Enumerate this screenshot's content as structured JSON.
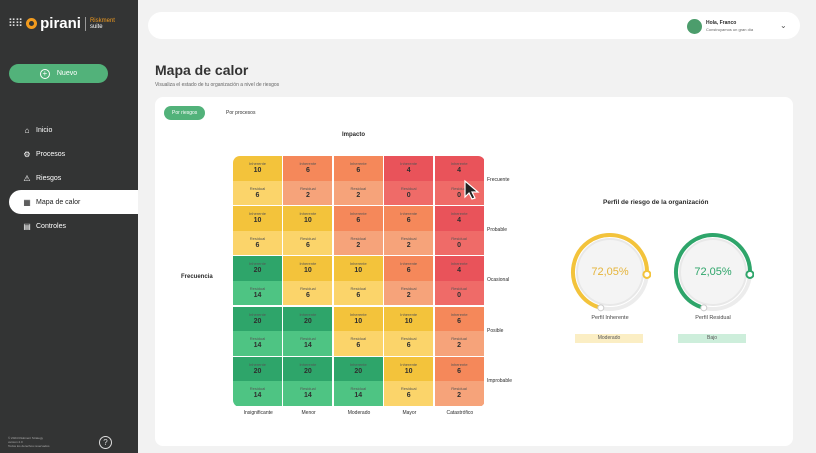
{
  "brand": {
    "name": "pirani",
    "suite_line1": "Riskment",
    "suite_line2": "suite",
    "grid_icon": "apps-grid-icon"
  },
  "new_button": {
    "label": "Nuevo"
  },
  "nav": [
    {
      "label": "Inicio",
      "icon": "home-icon",
      "glyph": "⌂"
    },
    {
      "label": "Procesos",
      "icon": "process-icon",
      "glyph": "⚙"
    },
    {
      "label": "Riesgos",
      "icon": "warning-icon",
      "glyph": "⚠"
    },
    {
      "label": "Mapa de calor",
      "icon": "heatmap-icon",
      "glyph": "▦"
    },
    {
      "label": "Controles",
      "icon": "controls-icon",
      "glyph": "▤"
    }
  ],
  "footer": {
    "line1": "© 2024 Riskment Strategy",
    "line2": "version 2.0",
    "line3": "Todos los derechos reservados"
  },
  "user": {
    "greeting": "Hola, Franco",
    "subtitle": "Construyamos un gran día"
  },
  "page": {
    "title": "Mapa de calor",
    "subtitle": "Visualiza el estado de tu organización a nivel de riesgos"
  },
  "tabs": [
    {
      "label": "Por riesgos"
    },
    {
      "label": "Por procesos"
    }
  ],
  "matrix": {
    "axis_impact": "Impacto",
    "axis_frequency": "Frecuencia",
    "inherent_label": "Inherente",
    "residual_label": "Residual",
    "columns": [
      "Insignificante",
      "Menor",
      "Moderado",
      "Mayor",
      "Catastrófico"
    ],
    "rows": [
      {
        "label": "Frecuente",
        "inherent": [
          10,
          6,
          6,
          4,
          4
        ],
        "residual": [
          6,
          2,
          2,
          0,
          0
        ],
        "inherent_colors": [
          "#f3c33b",
          "#f5885a",
          "#f5885a",
          "#e9535a",
          "#e9535a"
        ],
        "residual_colors": [
          "#fbd46a",
          "#f6a37a",
          "#f6a37a",
          "#ef6b68",
          "#ef6b68"
        ]
      },
      {
        "label": "Probable",
        "inherent": [
          10,
          10,
          6,
          6,
          4
        ],
        "residual": [
          6,
          6,
          2,
          2,
          0
        ],
        "inherent_colors": [
          "#f3c33b",
          "#f3c33b",
          "#f5885a",
          "#f5885a",
          "#e9535a"
        ],
        "residual_colors": [
          "#fbd46a",
          "#fbd46a",
          "#f6a37a",
          "#f6a37a",
          "#ef6b68"
        ]
      },
      {
        "label": "Ocasional",
        "inherent": [
          20,
          10,
          10,
          6,
          4
        ],
        "residual": [
          14,
          6,
          6,
          2,
          0
        ],
        "inherent_colors": [
          "#2ea56a",
          "#f3c33b",
          "#f3c33b",
          "#f5885a",
          "#e9535a"
        ],
        "residual_colors": [
          "#4ec483",
          "#fbd46a",
          "#fbd46a",
          "#f6a37a",
          "#ef6b68"
        ]
      },
      {
        "label": "Posible",
        "inherent": [
          20,
          20,
          10,
          10,
          6
        ],
        "residual": [
          14,
          14,
          6,
          6,
          2
        ],
        "inherent_colors": [
          "#2ea56a",
          "#2ea56a",
          "#f3c33b",
          "#f3c33b",
          "#f5885a"
        ],
        "residual_colors": [
          "#4ec483",
          "#4ec483",
          "#fbd46a",
          "#fbd46a",
          "#f6a37a"
        ]
      },
      {
        "label": "Improbable",
        "inherent": [
          20,
          20,
          20,
          10,
          6
        ],
        "residual": [
          14,
          14,
          14,
          6,
          2
        ],
        "inherent_colors": [
          "#2ea56a",
          "#2ea56a",
          "#2ea56a",
          "#f3c33b",
          "#f5885a"
        ],
        "residual_colors": [
          "#4ec483",
          "#4ec483",
          "#4ec483",
          "#fbd46a",
          "#f6a37a"
        ]
      }
    ]
  },
  "profile": {
    "title": "Perfil de riesgo de la organización",
    "gauges": [
      {
        "value_text": "72,05%",
        "value": 72.05,
        "label": "Perfil Inherente",
        "badge": "Moderado",
        "color": "#f3c33b",
        "text_color": "#e5b43a",
        "badge_bg": "#fbeec4"
      },
      {
        "value_text": "72,05%",
        "value": 72.05,
        "label": "Perfil Residual",
        "badge": "Bajo",
        "color": "#2ea56a",
        "text_color": "#2ea56a",
        "badge_bg": "#cdeedb"
      }
    ]
  }
}
